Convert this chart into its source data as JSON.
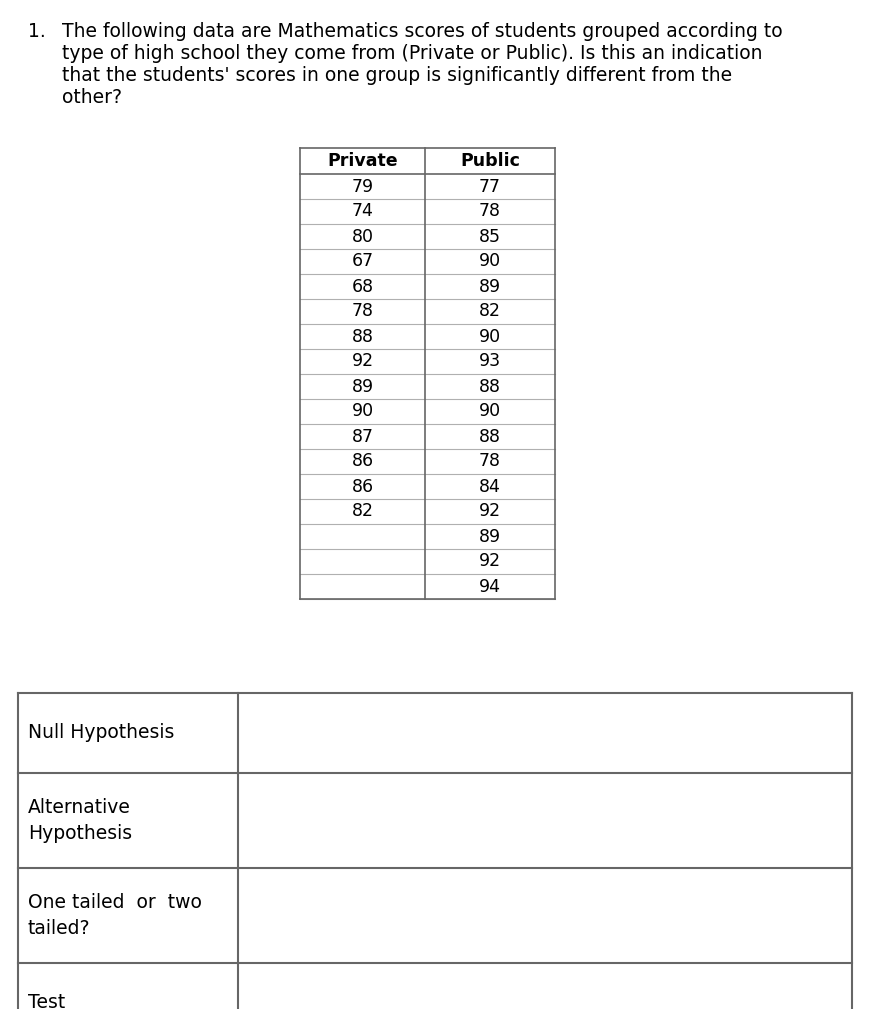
{
  "question_number": "1.",
  "question_lines": [
    "The following data are Mathematics scores of students grouped according to",
    "type of high school they come from (Private or Public). Is this an indication",
    "that the students' scores in one group is significantly different from the",
    "other?"
  ],
  "private_scores": [
    79,
    74,
    80,
    67,
    68,
    78,
    88,
    92,
    89,
    90,
    87,
    86,
    86,
    82,
    "",
    "",
    ""
  ],
  "public_scores": [
    77,
    78,
    85,
    90,
    89,
    82,
    90,
    93,
    88,
    90,
    88,
    78,
    84,
    92,
    89,
    92,
    94
  ],
  "col_headers": [
    "Private",
    "Public"
  ],
  "bottom_rows": [
    "Null Hypothesis",
    "Alternative\nHypothesis",
    "One tailed  or  two\ntailed?",
    "Test"
  ],
  "bg_color": "#ffffff",
  "text_color": "#000000",
  "table_line_color": "#b0b0b0",
  "outer_line_color": "#666666",
  "font_size_question": 13.5,
  "font_size_table": 12.5,
  "font_size_bottom": 13.5
}
